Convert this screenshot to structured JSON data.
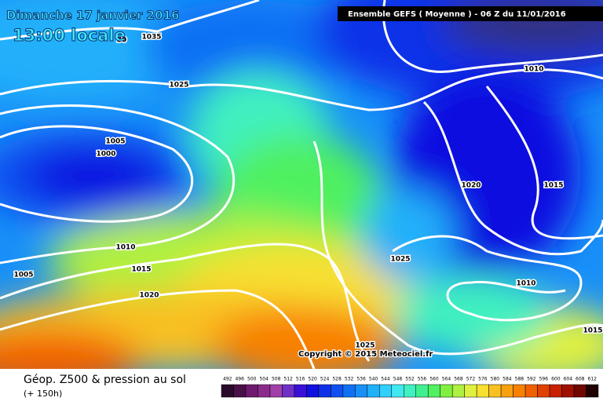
{
  "header": {
    "date": "Dimanche 17 janvier 2016",
    "time": "13:00 locale",
    "run": "Ensemble GEFS  ( Moyenne )  -  06 Z du 11/01/2016"
  },
  "map": {
    "copyright": "Copyright © 2015 Meteociel.fr",
    "isobar_labels": [
      "1035",
      "30",
      "1025",
      "1005",
      "1000",
      "1010",
      "1020",
      "1015",
      "1010",
      "1005",
      "1015",
      "1020",
      "1025",
      "1010",
      "1025",
      "1015"
    ]
  },
  "footer": {
    "title": "Géop. Z500 & pression au sol",
    "lead": "(+ 150h)"
  },
  "scale": {
    "values": [
      492,
      496,
      500,
      504,
      508,
      512,
      516,
      520,
      524,
      528,
      532,
      536,
      540,
      544,
      548,
      552,
      556,
      560,
      564,
      568,
      572,
      576,
      580,
      584,
      588,
      592,
      596,
      600,
      604,
      608,
      612
    ],
    "colors": [
      "#2a0a2a",
      "#4a1048",
      "#6e1a6e",
      "#8c2a8c",
      "#a040a8",
      "#7030c8",
      "#3a10d8",
      "#1010e0",
      "#1030e8",
      "#1050f0",
      "#1070f4",
      "#1890f8",
      "#20b0fa",
      "#30d0fc",
      "#40e8f0",
      "#40f0c0",
      "#40f090",
      "#50f060",
      "#80f040",
      "#b0f040",
      "#e0f040",
      "#f8e030",
      "#f8c020",
      "#f8a010",
      "#f88000",
      "#f06000",
      "#e04000",
      "#c82000",
      "#a01000",
      "#700800",
      "#200000"
    ]
  }
}
